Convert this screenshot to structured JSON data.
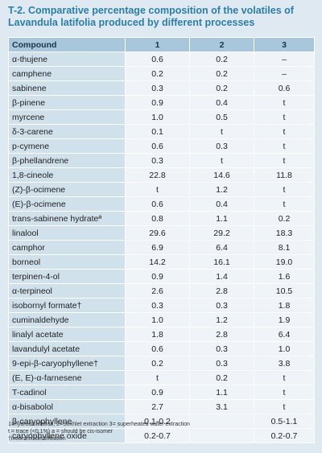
{
  "title": "T-2. Comparative percentage composition of the volatiles of Lavandula latifolia produced by different processes",
  "headers": [
    "Compound",
    "1",
    "2",
    "3"
  ],
  "rows": [
    [
      "α-thujene",
      "0.6",
      "0.2",
      "–"
    ],
    [
      "camphene",
      "0.2",
      "0.2",
      "–"
    ],
    [
      "sabinene",
      "0.3",
      "0.2",
      "0.6"
    ],
    [
      "β-pinene",
      "0.9",
      "0.4",
      "t"
    ],
    [
      "myrcene",
      "1.0",
      "0.5",
      "t"
    ],
    [
      "δ-3-carene",
      "0.1",
      "t",
      "t"
    ],
    [
      "p-cymene",
      "0.6",
      "0.3",
      "t"
    ],
    [
      "β-phellandrene",
      "0.3",
      "t",
      "t"
    ],
    [
      "1,8-cineole",
      "22.8",
      "14.6",
      "11.8"
    ],
    [
      "(Z)-β-ocimene",
      "t",
      "1.2",
      "t"
    ],
    [
      "(E)-β-ocimene",
      "0.6",
      "0.4",
      "t"
    ],
    [
      "trans-sabinene hydrateª",
      "0.8",
      "1.1",
      "0.2"
    ],
    [
      "linalool",
      "29.6",
      "29.2",
      "18.3"
    ],
    [
      "camphor",
      "6.9",
      "6.4",
      "8.1"
    ],
    [
      "borneol",
      "14.2",
      "16.1",
      "19.0"
    ],
    [
      "terpinen-4-ol",
      "0.9",
      "1.4",
      "1.6"
    ],
    [
      "α-terpineol",
      "2.6",
      "2.8",
      "10.5"
    ],
    [
      "isobornyl formate†",
      "0.3",
      "0.3",
      "1.8"
    ],
    [
      "cuminaldehyde",
      "1.0",
      "1.2",
      "1.9"
    ],
    [
      "linalyl acetate",
      "1.8",
      "2.8",
      "6.4"
    ],
    [
      "lavandulyl acetate",
      "0.6",
      "0.3",
      "1.0"
    ],
    [
      "9-epi-β-caryophyllene†",
      "0.2",
      "0.3",
      "3.8"
    ],
    [
      "(E, E)-α-farnesene",
      "t",
      "0.2",
      "t"
    ],
    [
      "T-cadinol",
      "0.9",
      "1.1",
      "t"
    ],
    [
      "α-bisabolol",
      "2.7",
      "3.1",
      "t"
    ],
    [
      "β-caryophyllene",
      "0.1-0.2",
      "",
      "0.5-1.1"
    ],
    [
      "caryophyllene oxide",
      "0.2-0.7",
      "",
      "0.2-0.7"
    ]
  ],
  "footnotes": [
    "1=hydrodistillation, 2=Soxhlet extraction 3= superheated water extraction",
    "t = trace (<0.1%) a = should be cis-isomer",
    "†incorrect identification"
  ]
}
